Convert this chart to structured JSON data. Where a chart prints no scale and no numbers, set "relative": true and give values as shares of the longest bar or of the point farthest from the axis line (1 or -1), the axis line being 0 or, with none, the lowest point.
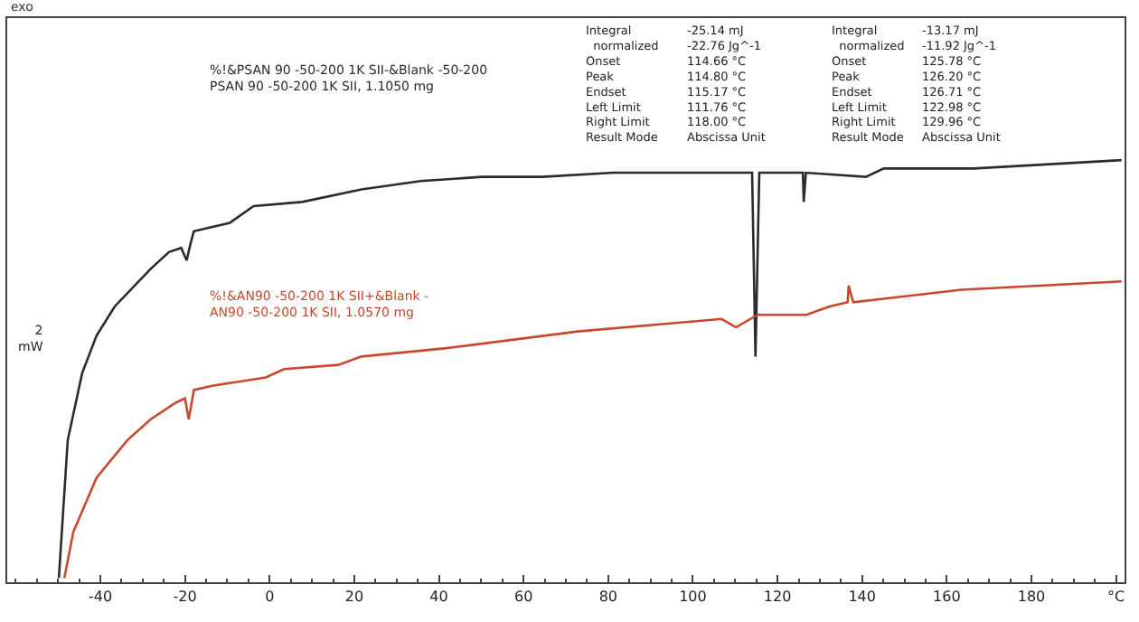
{
  "chart_data": {
    "type": "line",
    "relative": true,
    "xlabel": "°C",
    "xlim": [
      -62,
      202
    ],
    "xticks": [
      -40,
      -20,
      0,
      20,
      40,
      60,
      80,
      100,
      120,
      140,
      160,
      180
    ],
    "legend": false,
    "marker": "none",
    "line_style": "solid",
    "series": [
      {
        "name": "%!&PSAN 90 -50-200 1K SII-&Blank -50-200\nPSAN 90 -50-200 1K SII, 1.1050 mg",
        "color": "#2b2b2b",
        "x": [
          -49.8,
          -47.7,
          -44.3,
          -40.9,
          -36.6,
          -32.8,
          -28.1,
          -23.8,
          -20.9,
          -19.6,
          -18.7,
          -17.9,
          -9.4,
          -3.8,
          7.7,
          21.7,
          35.7,
          50.2,
          64.3,
          81.3,
          98.3,
          111.5,
          114.0,
          114.8,
          115.7,
          123.8,
          126.0,
          126.2,
          126.7,
          140.9,
          145.1,
          166.4,
          201.3
        ],
        "values": [
          0,
          0.33,
          0.49,
          0.58,
          0.65,
          0.69,
          0.74,
          0.78,
          0.79,
          0.76,
          0.8,
          0.83,
          0.85,
          0.89,
          0.9,
          0.93,
          0.95,
          0.96,
          0.96,
          0.97,
          0.97,
          0.97,
          0.97,
          0.53,
          0.97,
          0.97,
          0.97,
          0.9,
          0.97,
          0.96,
          0.98,
          0.98,
          1.0
        ]
      },
      {
        "name": "%!&AN90 -50-200 1K SII+&Blank -\nAN90 -50-200 1K SII, 1.0570 mg",
        "color": "#c8482e",
        "x": [
          -48.5,
          -46.4,
          -40.9,
          -33.6,
          -28.1,
          -22.1,
          -20.0,
          -19.1,
          -17.9,
          -13.6,
          -0.9,
          3.4,
          16.2,
          21.7,
          41.7,
          72.8,
          106.8,
          110.2,
          115.3,
          126.8,
          132.3,
          136.6,
          136.8,
          137.9,
          163.4,
          201.3
        ],
        "values": [
          0,
          0.11,
          0.24,
          0.33,
          0.38,
          0.42,
          0.43,
          0.38,
          0.45,
          0.46,
          0.48,
          0.5,
          0.51,
          0.53,
          0.55,
          0.59,
          0.62,
          0.6,
          0.63,
          0.63,
          0.65,
          0.66,
          0.7,
          0.66,
          0.69,
          0.71
        ]
      }
    ],
    "annotations": [
      "Integral\n  normalized\nOnset\nPeak\nEndset\nLeft Limit\nRight Limit\nResult Mode",
      "-25.14 mJ\n-22.76 Jg^-1\n114.66 °C\n114.80 °C\n115.17 °C\n111.76 °C\n118.00 °C\nAbscissa Unit",
      "Integral\n  normalized\nOnset\nPeak\nEndset\nLeft Limit\nRight Limit\nResult Mode",
      "-13.17 mJ\n-11.92 Jg^-1\n125.78 °C\n126.20 °C\n126.71 °C\n122.98 °C\n129.96 °C\nAbscissa Unit",
      "2\nmW",
      "exo"
    ]
  }
}
